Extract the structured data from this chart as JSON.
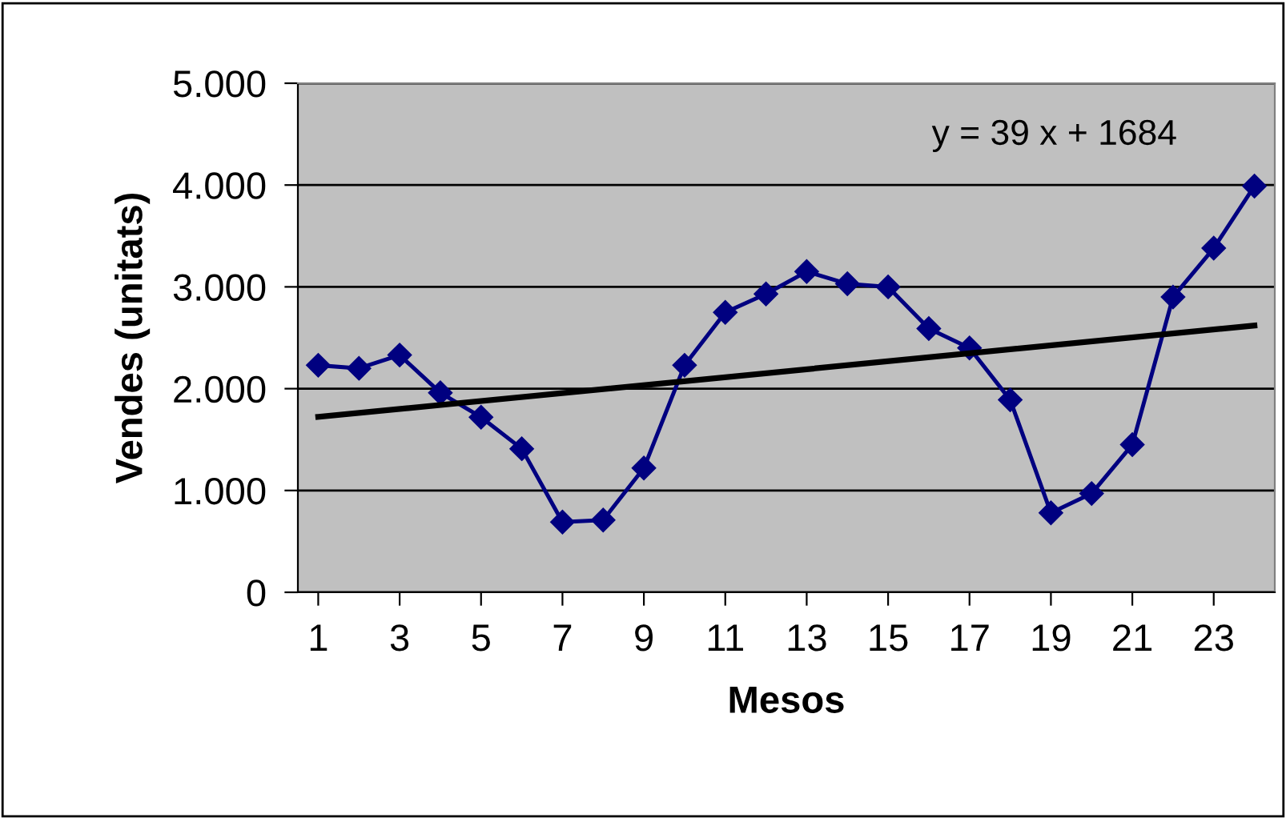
{
  "chart_data": {
    "type": "line",
    "xlabel": "Mesos",
    "ylabel": "Vendes (unitats)",
    "x": [
      1,
      2,
      3,
      4,
      5,
      6,
      7,
      8,
      9,
      10,
      11,
      12,
      13,
      14,
      15,
      16,
      17,
      18,
      19,
      20,
      21,
      22,
      23,
      24
    ],
    "series": [
      {
        "color": "#000080",
        "marker": "diamond",
        "values": [
          2230,
          2200,
          2330,
          1960,
          1720,
          1410,
          690,
          710,
          1220,
          2230,
          2750,
          2930,
          3150,
          3030,
          3000,
          2590,
          2400,
          1890,
          780,
          970,
          1450,
          2900,
          3380,
          3990
        ]
      },
      {
        "color": "#000000",
        "marker": "none",
        "x": [
          1,
          24
        ],
        "values": [
          1723,
          2620
        ]
      }
    ],
    "annotations": [
      "y = 39 x + 1684"
    ],
    "xlim": [
      0.5,
      24.5
    ],
    "xticks": [
      1,
      3,
      5,
      7,
      9,
      11,
      13,
      15,
      17,
      19,
      21,
      23
    ],
    "ylim": [
      0,
      5000
    ],
    "yticks": [
      {
        "value": 0,
        "label": "0"
      },
      {
        "value": 1000,
        "label": "1.000"
      },
      {
        "value": 2000,
        "label": "2.000"
      },
      {
        "value": 3000,
        "label": "3.000"
      },
      {
        "value": 4000,
        "label": "4.000"
      },
      {
        "value": 5000,
        "label": "5.000"
      }
    ],
    "grid": "y",
    "legend": false
  }
}
